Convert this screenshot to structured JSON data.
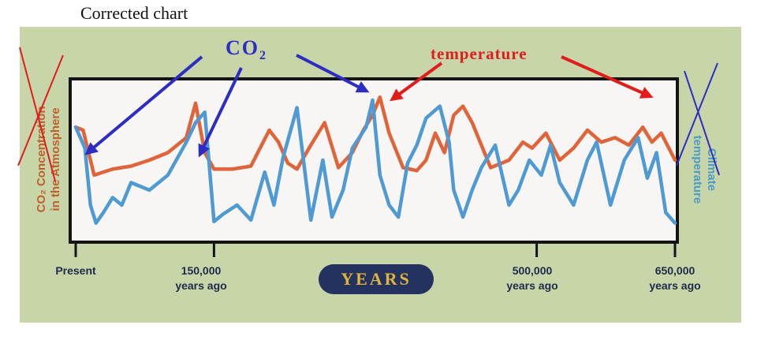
{
  "title": "Corrected chart",
  "annotations": {
    "co2_label": "CO",
    "co2_subscript": "2",
    "temperature_label": "temperature"
  },
  "axes": {
    "left_label_line1": "CO₂ Concentration",
    "left_label_line2": "in the Atmosphere",
    "right_label_line1": "Climate",
    "right_label_line2": "temperature"
  },
  "years_badge": "YEARS",
  "colors": {
    "panel": "#c7d5a8",
    "temperature_line": "#e0643a",
    "co2_line": "#4f9ad2",
    "co2_arrow": "#2d2dc4",
    "temperature_arrow": "#e21b1b"
  },
  "chart_data": {
    "type": "line",
    "x_axis": {
      "title": "YEARS",
      "ticks": [
        {
          "value": 0,
          "line1": "Present",
          "line2": ""
        },
        {
          "value": 150000,
          "line1": "150,000",
          "line2": "years ago"
        },
        {
          "value": 500000,
          "line1": "500,000",
          "line2": "years ago"
        },
        {
          "value": 650000,
          "line1": "650,000",
          "line2": "years ago"
        }
      ],
      "range": [
        0,
        650000
      ]
    },
    "y_axis": {
      "range": [
        0,
        1
      ],
      "ticks": []
    },
    "series": [
      {
        "name": "temperature",
        "x": [
          0,
          8000,
          14000,
          20000,
          40000,
          60000,
          80000,
          100000,
          120000,
          130000,
          140000,
          150000,
          170000,
          190000,
          210000,
          220000,
          230000,
          240000,
          255000,
          270000,
          285000,
          300000,
          312000,
          322000,
          330000,
          340000,
          355000,
          370000,
          380000,
          390000,
          400000,
          410000,
          420000,
          430000,
          450000,
          470000,
          485000,
          495000,
          510000,
          525000,
          540000,
          555000,
          570000,
          585000,
          600000,
          615000,
          625000,
          635000,
          650000
        ],
        "values": [
          0.72,
          0.7,
          0.55,
          0.4,
          0.44,
          0.46,
          0.5,
          0.55,
          0.65,
          0.88,
          0.55,
          0.44,
          0.44,
          0.46,
          0.7,
          0.62,
          0.48,
          0.44,
          0.6,
          0.75,
          0.45,
          0.55,
          0.7,
          0.8,
          0.92,
          0.68,
          0.45,
          0.43,
          0.5,
          0.68,
          0.55,
          0.8,
          0.86,
          0.75,
          0.45,
          0.5,
          0.62,
          0.58,
          0.68,
          0.5,
          0.58,
          0.7,
          0.62,
          0.65,
          0.6,
          0.72,
          0.62,
          0.68,
          0.5
        ]
      },
      {
        "name": "CO₂",
        "x": [
          0,
          10000,
          16000,
          22000,
          30000,
          40000,
          50000,
          60000,
          80000,
          100000,
          120000,
          130000,
          140000,
          150000,
          160000,
          175000,
          190000,
          205000,
          215000,
          225000,
          240000,
          255000,
          268000,
          278000,
          290000,
          300000,
          315000,
          322000,
          330000,
          340000,
          350000,
          360000,
          370000,
          380000,
          395000,
          405000,
          410000,
          420000,
          430000,
          440000,
          455000,
          470000,
          480000,
          492000,
          505000,
          515000,
          525000,
          540000,
          555000,
          565000,
          580000,
          595000,
          610000,
          620000,
          630000,
          640000,
          650000
        ],
        "values": [
          0.72,
          0.58,
          0.2,
          0.08,
          0.15,
          0.25,
          0.2,
          0.35,
          0.3,
          0.4,
          0.62,
          0.75,
          0.82,
          0.09,
          0.14,
          0.2,
          0.1,
          0.42,
          0.2,
          0.52,
          0.85,
          0.1,
          0.5,
          0.12,
          0.3,
          0.58,
          0.72,
          0.9,
          0.4,
          0.2,
          0.12,
          0.48,
          0.6,
          0.78,
          0.86,
          0.62,
          0.3,
          0.12,
          0.3,
          0.45,
          0.6,
          0.2,
          0.3,
          0.5,
          0.4,
          0.6,
          0.35,
          0.2,
          0.5,
          0.62,
          0.2,
          0.5,
          0.65,
          0.38,
          0.55,
          0.15,
          0.08
        ]
      }
    ]
  }
}
